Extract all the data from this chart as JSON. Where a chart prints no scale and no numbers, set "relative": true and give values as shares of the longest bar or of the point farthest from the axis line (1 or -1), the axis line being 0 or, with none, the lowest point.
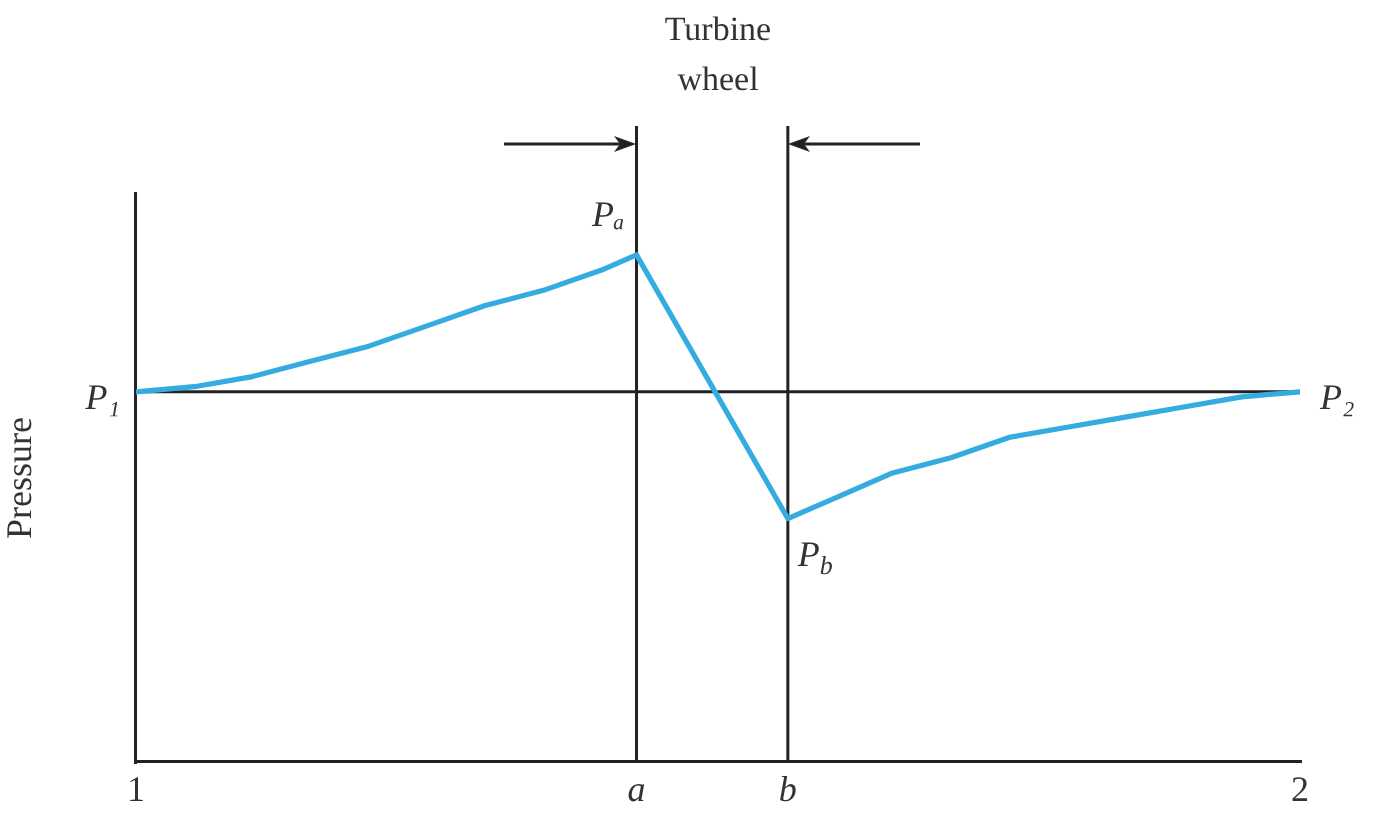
{
  "chart_data": {
    "type": "line",
    "title": "Turbine wheel",
    "ylabel": "Pressure",
    "relative": true,
    "x": [
      1,
      1.05,
      1.1,
      1.15,
      1.2,
      1.25,
      1.3,
      1.35,
      1.4,
      1.43,
      1.56,
      1.6,
      1.65,
      1.7,
      1.75,
      1.8,
      1.85,
      1.9,
      1.95,
      2
    ],
    "values": [
      0.73,
      0.74,
      0.76,
      0.79,
      0.82,
      0.86,
      0.9,
      0.93,
      0.97,
      1,
      0.48,
      0.52,
      0.57,
      0.6,
      0.64,
      0.66,
      0.68,
      0.7,
      0.72,
      0.73
    ],
    "color": "#35ace0",
    "xlim": [
      1,
      2
    ],
    "xticks": [
      1,
      {
        "value": 1.43,
        "label": "a"
      },
      {
        "value": 1.56,
        "label": "b"
      },
      2
    ],
    "ref_lines": [
      {
        "axis": "y",
        "value": 0.73
      },
      {
        "axis": "x",
        "value": 1.43
      },
      {
        "axis": "x",
        "value": 1.56
      }
    ],
    "annotations": [
      {
        "text": "P₁",
        "x": 1,
        "y": 0.73
      },
      {
        "text": "Pₐ",
        "x": 1.43,
        "y": 1
      },
      {
        "text": "P$_{b}$",
        "x": 1.56,
        "y": 0.48
      },
      {
        "text": "P₂",
        "x": 2,
        "y": 0.73
      }
    ]
  }
}
